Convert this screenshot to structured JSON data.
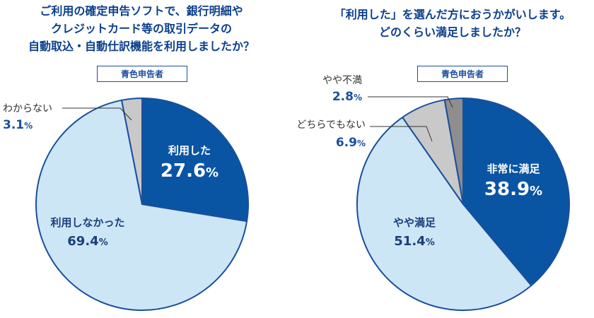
{
  "left": {
    "title": [
      "ご利用の確定申告ソフトで、銀行明細や",
      "クレジットカード等の取引データの",
      "自動取込・自動仕訳機能を利用しましたか？"
    ],
    "tag": "青色申告者"
  },
  "right": {
    "title": [
      "「利用した」を選んだ方におうかがいします。",
      "どのくらい満足しましたか？"
    ],
    "tag": "青色申告者"
  },
  "colors": {
    "dark": "#0a54a4",
    "light": "#cde6f6",
    "gray": "#c9c9c9",
    "darkgray": "#8e8e8e",
    "border": "#1a4f9c"
  },
  "chart_data": [
    {
      "type": "pie",
      "title": "ご利用の確定申告ソフトで、銀行明細やクレジットカード等の取引データの自動取込・自動仕訳機能を利用しましたか？",
      "subtitle": "青色申告者",
      "start": "12 o'clock",
      "direction": "clockwise",
      "slices": [
        {
          "label": "利用した",
          "value": 27.6,
          "display": "27.6",
          "unit": "%",
          "color": "#0a54a4",
          "label_style": "inside-white"
        },
        {
          "label": "利用しなかった",
          "value": 69.4,
          "display": "69.4",
          "unit": "%",
          "color": "#cde6f6",
          "label_style": "inside-dark"
        },
        {
          "label": "わからない",
          "value": 3.1,
          "display": "3.1",
          "unit": "%",
          "color": "#c9c9c9",
          "label_style": "outside"
        }
      ]
    },
    {
      "type": "pie",
      "title": "「利用した」を選んだ方におうかがいします。どのくらい満足しましたか？",
      "subtitle": "青色申告者",
      "start": "12 o'clock",
      "direction": "clockwise",
      "slices": [
        {
          "label": "非常に満足",
          "value": 38.9,
          "display": "38.9",
          "unit": "%",
          "color": "#0a54a4",
          "label_style": "inside-white"
        },
        {
          "label": "やや満足",
          "value": 51.4,
          "display": "51.4",
          "unit": "%",
          "color": "#cde6f6",
          "label_style": "inside-dark"
        },
        {
          "label": "どちらでもない",
          "value": 6.9,
          "display": "6.9",
          "unit": "%",
          "color": "#c9c9c9",
          "label_style": "outside"
        },
        {
          "label": "やや不満",
          "value": 2.8,
          "display": "2.8",
          "unit": "%",
          "color": "#8e8e8e",
          "label_style": "outside"
        }
      ]
    }
  ]
}
